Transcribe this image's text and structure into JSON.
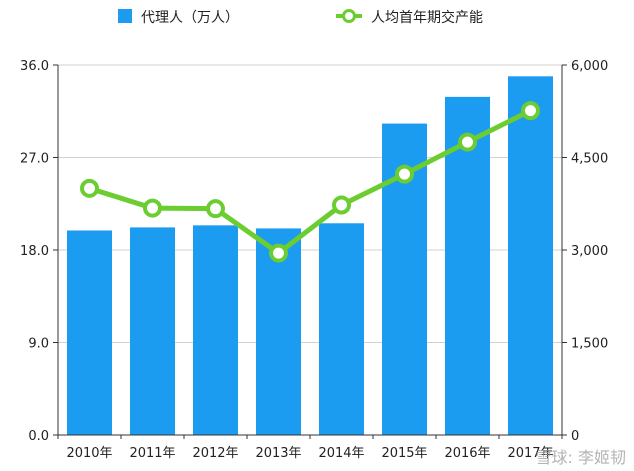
{
  "chart_data": {
    "type": "bar",
    "categories": [
      "2010年",
      "2011年",
      "2012年",
      "2013年",
      "2014年",
      "2015年",
      "2016年",
      "2017年"
    ],
    "series": [
      {
        "name": "代理人（万人）",
        "type": "bar",
        "axis": "left",
        "color": "#1b9cf0",
        "values": [
          19.9,
          20.2,
          20.4,
          20.1,
          20.6,
          30.3,
          32.9,
          34.9
        ]
      },
      {
        "name": "人均首年期交产能",
        "type": "line",
        "axis": "right",
        "color": "#6ccd31",
        "values": [
          4000,
          3680,
          3670,
          2950,
          3730,
          4230,
          4750,
          5260
        ]
      }
    ],
    "y_left": {
      "ylim": [
        0,
        36
      ],
      "ticks": [
        "0.0",
        "9.0",
        "18.0",
        "27.0",
        "36.0"
      ]
    },
    "y_right": {
      "ylim": [
        0,
        6000
      ],
      "ticks": [
        "0",
        "1,500",
        "3,000",
        "4,500",
        "6,000"
      ]
    },
    "grid": true,
    "legend_placement": "top",
    "watermark": "雪球: 李姬韧"
  }
}
